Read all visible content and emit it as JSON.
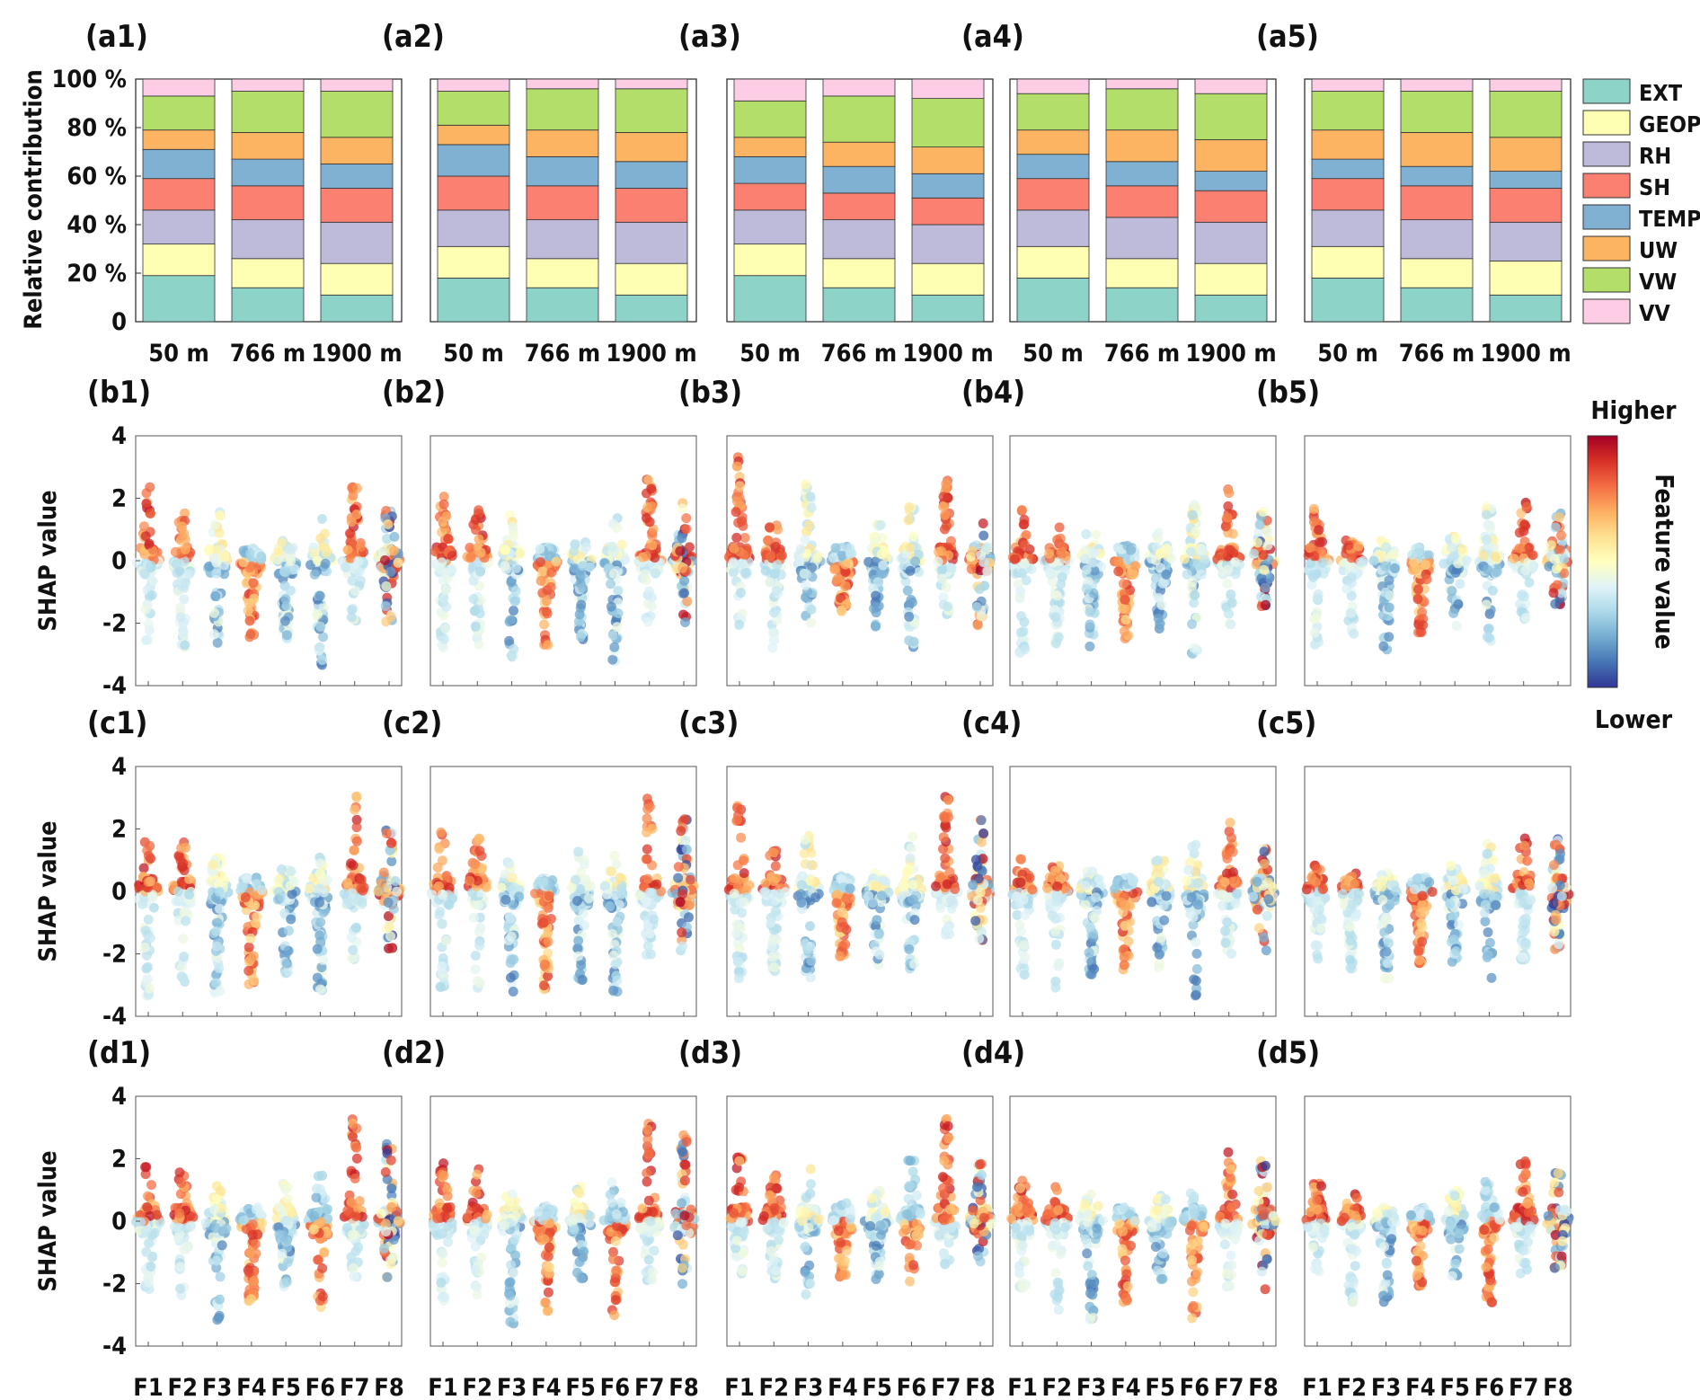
{
  "colors": {
    "EXT": "#8dd3c7",
    "GEOP": "#ffffb3",
    "RH": "#bebada",
    "SH": "#fb8072",
    "TEMP": "#80b1d3",
    "UW": "#fdb462",
    "VW": "#b3de69",
    "VV": "#fccde5"
  },
  "colorbar": {
    "top_label": "Higher",
    "bottom_label": "Lower",
    "title": "Feature value",
    "stops": [
      "#a50026",
      "#d73027",
      "#f46d43",
      "#fdae61",
      "#fee090",
      "#ffffbf",
      "#e0f3f8",
      "#abd9e9",
      "#74add1",
      "#4575b4",
      "#313695"
    ]
  },
  "chart_data": [
    {
      "type": "bar",
      "stacked": true,
      "panels": [
        "(a1)",
        "(a2)",
        "(a3)",
        "(a4)",
        "(a5)"
      ],
      "categories": [
        "50 m",
        "766 m",
        "1900 m"
      ],
      "ylabel": "Relative contribution",
      "ylim": [
        0,
        100
      ],
      "yticks": [
        "0",
        "20 %",
        "40 %",
        "60 %",
        "80 %",
        "100 %"
      ],
      "legend": [
        "EXT",
        "GEOP",
        "RH",
        "SH",
        "TEMP",
        "UW",
        "VW",
        "VV"
      ],
      "legend_position": "right",
      "series_order": [
        "EXT",
        "GEOP",
        "RH",
        "SH",
        "TEMP",
        "UW",
        "VW",
        "VV"
      ],
      "values": [
        [
          [
            19,
            13,
            14,
            13,
            12,
            8,
            14,
            7
          ],
          [
            14,
            12,
            16,
            14,
            11,
            11,
            17,
            5
          ],
          [
            11,
            13,
            17,
            14,
            10,
            11,
            19,
            5
          ]
        ],
        [
          [
            18,
            13,
            15,
            14,
            13,
            8,
            14,
            5
          ],
          [
            14,
            12,
            16,
            14,
            12,
            11,
            17,
            4
          ],
          [
            11,
            13,
            17,
            14,
            11,
            12,
            18,
            4
          ]
        ],
        [
          [
            19,
            13,
            14,
            11,
            11,
            8,
            15,
            9
          ],
          [
            14,
            12,
            16,
            11,
            11,
            10,
            19,
            7
          ],
          [
            11,
            13,
            16,
            11,
            10,
            11,
            20,
            8
          ]
        ],
        [
          [
            18,
            13,
            15,
            13,
            10,
            10,
            15,
            6
          ],
          [
            14,
            12,
            17,
            13,
            10,
            13,
            17,
            4
          ],
          [
            11,
            13,
            17,
            13,
            8,
            13,
            19,
            6
          ]
        ],
        [
          [
            18,
            13,
            15,
            13,
            8,
            12,
            16,
            5
          ],
          [
            14,
            12,
            16,
            14,
            8,
            14,
            17,
            5
          ],
          [
            11,
            14,
            16,
            14,
            7,
            14,
            19,
            5
          ]
        ]
      ]
    },
    {
      "type": "scatter",
      "subtype": "beeswarm",
      "rows": [
        [
          "(b1)",
          "(b2)",
          "(b3)",
          "(b4)",
          "(b5)"
        ],
        [
          "(c1)",
          "(c2)",
          "(c3)",
          "(c4)",
          "(c5)"
        ],
        [
          "(d1)",
          "(d2)",
          "(d3)",
          "(d4)",
          "(d5)"
        ]
      ],
      "categories": [
        "F1",
        "F2",
        "F3",
        "F4",
        "F5",
        "F6",
        "F7",
        "F8"
      ],
      "ylabel": "SHAP value",
      "ylim": [
        -4,
        4
      ],
      "yticks": [
        "4",
        "2",
        "0",
        "-2",
        "-4"
      ],
      "ranges": [
        [
          [
            [
              -2.7,
              2.4
            ],
            [
              -2.8,
              1.6
            ],
            [
              -2.9,
              1.6
            ],
            [
              -2.6,
              0.4
            ],
            [
              -2.5,
              0.7
            ],
            [
              -3.4,
              1.5
            ],
            [
              -2.0,
              2.6
            ],
            [
              -2.0,
              1.6
            ]
          ],
          [
            [
              -3.0,
              2.3
            ],
            [
              -2.9,
              1.8
            ],
            [
              -3.1,
              1.5
            ],
            [
              -2.8,
              0.4
            ],
            [
              -2.6,
              0.6
            ],
            [
              -3.4,
              1.5
            ],
            [
              -2.1,
              2.6
            ],
            [
              -2.0,
              1.9
            ]
          ],
          [
            [
              -2.2,
              3.6
            ],
            [
              -2.8,
              1.3
            ],
            [
              -2.1,
              2.5
            ],
            [
              -1.7,
              0.4
            ],
            [
              -2.3,
              1.2
            ],
            [
              -2.8,
              1.9
            ],
            [
              -1.8,
              2.6
            ],
            [
              -2.1,
              1.3
            ]
          ],
          [
            [
              -3.0,
              1.8
            ],
            [
              -2.7,
              1.1
            ],
            [
              -2.9,
              0.9
            ],
            [
              -2.5,
              0.5
            ],
            [
              -2.2,
              0.9
            ],
            [
              -3.1,
              1.8
            ],
            [
              -2.1,
              2.4
            ],
            [
              -1.5,
              1.6
            ]
          ],
          [
            [
              -2.7,
              1.8
            ],
            [
              -2.4,
              0.8
            ],
            [
              -2.9,
              0.9
            ],
            [
              -2.3,
              0.6
            ],
            [
              -2.1,
              0.9
            ],
            [
              -2.7,
              1.8
            ],
            [
              -2.0,
              1.9
            ],
            [
              -1.4,
              1.6
            ]
          ]
        ],
        [
          [
            [
              -3.4,
              1.8
            ],
            [
              -3.0,
              1.6
            ],
            [
              -3.3,
              1.2
            ],
            [
              -3.0,
              0.4
            ],
            [
              -2.8,
              1.0
            ],
            [
              -3.2,
              1.4
            ],
            [
              -2.3,
              3.1
            ],
            [
              -1.9,
              2.1
            ]
          ],
          [
            [
              -3.5,
              1.9
            ],
            [
              -3.2,
              1.8
            ],
            [
              -3.4,
              1.0
            ],
            [
              -3.2,
              0.4
            ],
            [
              -3.0,
              1.3
            ],
            [
              -3.4,
              1.2
            ],
            [
              -2.1,
              3.1
            ],
            [
              -2.0,
              2.4
            ]
          ],
          [
            [
              -2.8,
              2.8
            ],
            [
              -2.6,
              1.6
            ],
            [
              -2.9,
              1.9
            ],
            [
              -2.1,
              0.5
            ],
            [
              -2.4,
              0.9
            ],
            [
              -2.5,
              1.8
            ],
            [
              -1.5,
              3.1
            ],
            [
              -1.8,
              2.5
            ]
          ],
          [
            [
              -2.9,
              1.2
            ],
            [
              -3.1,
              0.9
            ],
            [
              -2.7,
              0.7
            ],
            [
              -2.5,
              0.5
            ],
            [
              -2.6,
              1.0
            ],
            [
              -3.4,
              1.6
            ],
            [
              -2.1,
              2.3
            ],
            [
              -1.9,
              1.9
            ]
          ],
          [
            [
              -2.3,
              1.3
            ],
            [
              -2.6,
              0.6
            ],
            [
              -2.8,
              0.6
            ],
            [
              -2.3,
              0.6
            ],
            [
              -2.3,
              1.0
            ],
            [
              -2.9,
              1.7
            ],
            [
              -2.4,
              1.9
            ],
            [
              -1.9,
              1.7
            ]
          ]
        ],
        [
          [
            [
              -2.3,
              1.8
            ],
            [
              -2.4,
              1.6
            ],
            [
              -3.2,
              1.2
            ],
            [
              -2.6,
              0.6
            ],
            [
              -2.1,
              1.2
            ],
            [
              -3.0,
              1.5
            ],
            [
              -2.0,
              3.3
            ],
            [
              -1.9,
              2.5
            ]
          ],
          [
            [
              -2.6,
              1.9
            ],
            [
              -2.6,
              1.8
            ],
            [
              -3.4,
              0.9
            ],
            [
              -2.9,
              0.5
            ],
            [
              -2.3,
              1.1
            ],
            [
              -3.1,
              1.4
            ],
            [
              -2.1,
              3.3
            ],
            [
              -2.1,
              2.8
            ]
          ],
          [
            [
              -1.7,
              2.2
            ],
            [
              -1.9,
              1.5
            ],
            [
              -2.4,
              1.8
            ],
            [
              -1.8,
              0.6
            ],
            [
              -1.9,
              1.3
            ],
            [
              -2.1,
              2.0
            ],
            [
              -1.4,
              3.3
            ],
            [
              -1.5,
              1.9
            ]
          ],
          [
            [
              -2.2,
              1.3
            ],
            [
              -2.9,
              1.2
            ],
            [
              -3.2,
              0.9
            ],
            [
              -2.6,
              0.5
            ],
            [
              -1.9,
              1.0
            ],
            [
              -3.3,
              1.2
            ],
            [
              -2.1,
              2.4
            ],
            [
              -2.2,
              2.0
            ]
          ],
          [
            [
              -1.7,
              1.3
            ],
            [
              -2.6,
              0.9
            ],
            [
              -2.6,
              0.4
            ],
            [
              -2.1,
              0.6
            ],
            [
              -1.8,
              1.0
            ],
            [
              -2.7,
              1.3
            ],
            [
              -1.7,
              2.1
            ],
            [
              -1.6,
              1.8
            ]
          ]
        ]
      ]
    }
  ]
}
